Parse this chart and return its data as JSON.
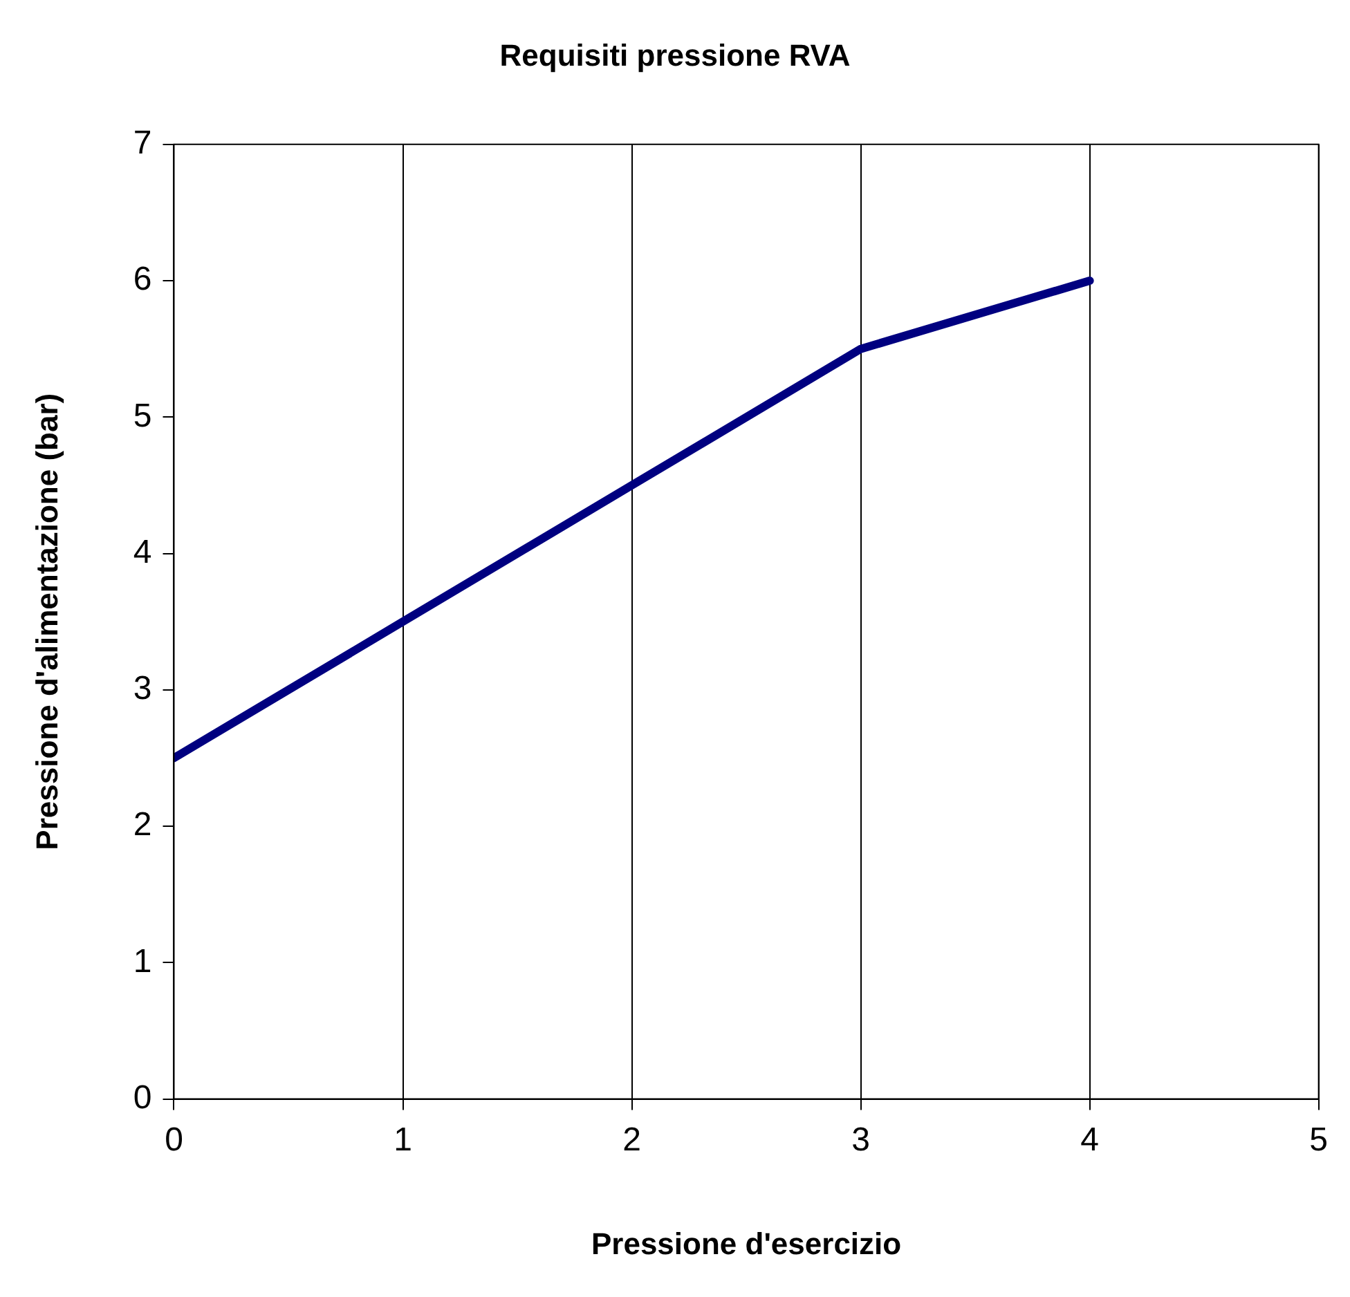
{
  "chart_data": {
    "type": "line",
    "title": "Requisiti pressione RVA",
    "xlabel": "Pressione d'esercizio",
    "ylabel": "Pressione d'alimentazione (bar)",
    "x": [
      0,
      1,
      2,
      3,
      4
    ],
    "series": [
      {
        "color": "#000080",
        "values": [
          2.5,
          3.5,
          4.5,
          5.5,
          6
        ]
      }
    ],
    "xlim": [
      0,
      5
    ],
    "xticks": [
      0,
      1,
      2,
      3,
      4,
      5
    ],
    "ylim": [
      0,
      7
    ],
    "yticks": [
      0,
      1,
      2,
      3,
      4,
      5,
      6,
      7
    ],
    "grid": "x",
    "legend": false,
    "marker": "none",
    "line_style": "solid"
  }
}
